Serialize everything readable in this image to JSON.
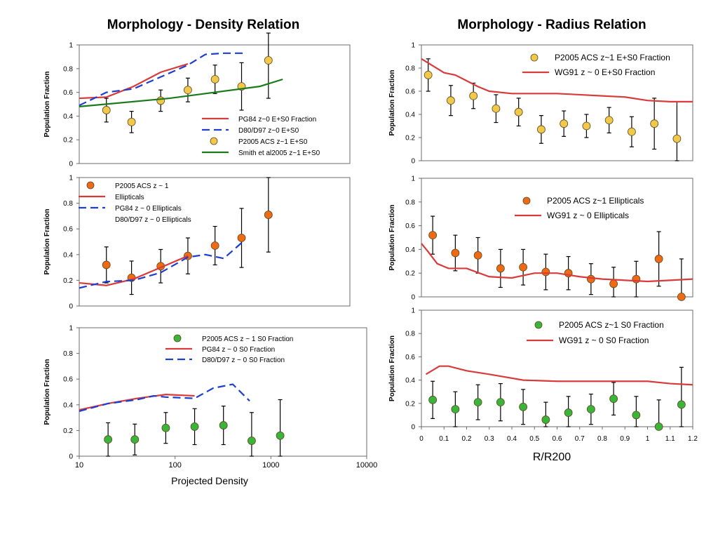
{
  "titles": {
    "left": "Morphology - Density Relation",
    "right": "Morphology - Radius Relation"
  },
  "left_xlabel": "Projected Density",
  "right_xlabel": "R/R200",
  "colors": {
    "red": "#d93a3a",
    "blue": "#1c3fcf",
    "green": "#1a7a1a",
    "yellow_marker": "#f2c84b",
    "orange_marker": "#ee6a14",
    "green_marker": "#3ab53a",
    "frame": "#6b6b6b"
  },
  "chart_data": [
    {
      "type": "scatter",
      "panel": "Density / E+S0",
      "title": "Morphology - Density Relation",
      "ylabel": "Population Fraction",
      "xscale": "log",
      "xlim": [
        10,
        10000
      ],
      "ylim": [
        0,
        1
      ],
      "yticks": [
        "0",
        "0.2",
        "0.4",
        "0.6",
        "0.8",
        "1"
      ],
      "legend_position": "bottom-right",
      "series": [
        {
          "name": "PG84 z~0 E+S0 Fraction",
          "style": "line",
          "color": "red",
          "x": [
            10,
            20,
            40,
            80,
            160
          ],
          "y": [
            0.55,
            0.56,
            0.65,
            0.77,
            0.84
          ]
        },
        {
          "name": "D80/D97 z~0 E+S0",
          "style": "dashed",
          "color": "blue",
          "x": [
            10,
            20,
            40,
            80,
            160,
            250,
            400,
            650
          ],
          "y": [
            0.49,
            0.6,
            0.63,
            0.73,
            0.83,
            0.92,
            0.93,
            0.93
          ]
        },
        {
          "name": "P2005 ACS z~1 E+S0",
          "style": "points",
          "color": "yellow_marker",
          "x": [
            20,
            38,
            80,
            160,
            320,
            630,
            1250
          ],
          "y": [
            0.45,
            0.35,
            0.53,
            0.62,
            0.71,
            0.65,
            0.87
          ],
          "err": [
            0.1,
            0.09,
            0.09,
            0.1,
            0.12,
            0.2,
            0.32
          ]
        },
        {
          "name": "Smith et al2005 z~1 E+S0",
          "style": "line",
          "color": "green",
          "x": [
            10,
            100,
            1000,
            1800
          ],
          "y": [
            0.48,
            0.55,
            0.65,
            0.71
          ]
        }
      ]
    },
    {
      "type": "scatter",
      "panel": "Density / Ellipticals",
      "ylabel": "Population Fraction",
      "xscale": "log",
      "xlim": [
        10,
        10000
      ],
      "ylim": [
        0,
        1
      ],
      "yticks": [
        "0",
        "0.2",
        "0.4",
        "0.6",
        "0.8",
        "1"
      ],
      "legend_position": "top-left",
      "series": [
        {
          "name": "P2005 ACS z ~ 1",
          "style": "points",
          "color": "orange_marker",
          "x": [
            20,
            38,
            80,
            160,
            320,
            630,
            1250
          ],
          "y": [
            0.32,
            0.22,
            0.31,
            0.39,
            0.47,
            0.53,
            0.71
          ],
          "err": [
            0.14,
            0.13,
            0.13,
            0.14,
            0.15,
            0.23,
            0.29
          ]
        },
        {
          "name": "Ellipticals",
          "style": "line",
          "color": "red",
          "x": [
            10,
            20,
            40,
            80,
            160
          ],
          "y": [
            0.18,
            0.16,
            0.21,
            0.3,
            0.39
          ]
        },
        {
          "name": "PG84 z ~ 0 Ellipticals",
          "style": "dashed",
          "color": "blue",
          "x": [
            10,
            20,
            40,
            80,
            160,
            250,
            400,
            650
          ],
          "y": [
            0.14,
            0.19,
            0.2,
            0.26,
            0.38,
            0.4,
            0.37,
            0.5
          ]
        }
      ],
      "legend_extra_text": "D80/D97 z ~ 0 Ellipticals"
    },
    {
      "type": "scatter",
      "panel": "Density / S0",
      "ylabel": "Population Fraction",
      "xscale": "log",
      "xlim": [
        10,
        10000
      ],
      "ylim": [
        0,
        1
      ],
      "yticks": [
        "0",
        "0.2",
        "0.4",
        "0.6",
        "0.8",
        "1"
      ],
      "xticks": [
        "10",
        "100",
        "1000",
        "10000"
      ],
      "xlabel": "Projected Density",
      "legend_position": "top-right",
      "series": [
        {
          "name": "P2005 ACS z ~ 1 S0 Fraction",
          "style": "points",
          "color": "green_marker",
          "x": [
            20,
            38,
            80,
            160,
            320,
            630,
            1250
          ],
          "y": [
            0.13,
            0.13,
            0.22,
            0.23,
            0.24,
            0.12,
            0.16
          ],
          "err": [
            0.13,
            0.12,
            0.12,
            0.14,
            0.15,
            0.22,
            0.28
          ]
        },
        {
          "name": "PG84 z ~ 0 S0 Fraction",
          "style": "line",
          "color": "red",
          "x": [
            10,
            20,
            40,
            80,
            160
          ],
          "y": [
            0.36,
            0.41,
            0.45,
            0.48,
            0.47
          ]
        },
        {
          "name": "D80/D97 z ~ 0 S0 Fraction",
          "style": "dashed",
          "color": "blue",
          "x": [
            10,
            20,
            40,
            60,
            80,
            160,
            250,
            400,
            600
          ],
          "y": [
            0.35,
            0.41,
            0.44,
            0.47,
            0.46,
            0.45,
            0.53,
            0.56,
            0.43
          ]
        }
      ]
    },
    {
      "type": "scatter",
      "panel": "Radius / E+S0",
      "title": "Morphology - Radius Relation",
      "ylabel": "Population Fraction",
      "xlim": [
        0,
        1.2
      ],
      "ylim": [
        0,
        1
      ],
      "yticks": [
        "0",
        "0.2",
        "0.4",
        "0.6",
        "0.8",
        "1"
      ],
      "legend_position": "top-right",
      "series": [
        {
          "name": "P2005 ACS z~1 E+S0 Fraction",
          "style": "points",
          "color": "yellow_marker",
          "x": [
            0.03,
            0.13,
            0.23,
            0.33,
            0.43,
            0.53,
            0.63,
            0.73,
            0.83,
            0.93,
            1.03,
            1.13
          ],
          "y": [
            0.74,
            0.52,
            0.56,
            0.45,
            0.42,
            0.27,
            0.32,
            0.3,
            0.35,
            0.25,
            0.32,
            0.19
          ],
          "err": [
            0.14,
            0.13,
            0.11,
            0.12,
            0.12,
            0.12,
            0.11,
            0.1,
            0.11,
            0.13,
            0.22,
            0.32
          ]
        },
        {
          "name": "WG91 z ~ 0 E+S0 Fraction",
          "style": "line",
          "color": "red",
          "x": [
            0.0,
            0.05,
            0.1,
            0.15,
            0.2,
            0.25,
            0.3,
            0.4,
            0.5,
            0.6,
            0.7,
            0.8,
            0.9,
            1.0,
            1.1,
            1.2
          ],
          "y": [
            0.88,
            0.82,
            0.76,
            0.74,
            0.69,
            0.64,
            0.6,
            0.58,
            0.58,
            0.58,
            0.57,
            0.56,
            0.55,
            0.52,
            0.51,
            0.51
          ]
        }
      ]
    },
    {
      "type": "scatter",
      "panel": "Radius / Ellipticals",
      "ylabel": "Population  Fraction",
      "xlim": [
        0,
        1.2
      ],
      "ylim": [
        0,
        1
      ],
      "yticks": [
        "0",
        "0.2",
        "0.4",
        "0.6",
        "0.8",
        "1"
      ],
      "legend_position": "top-right",
      "series": [
        {
          "name": "P2005 ACS z~1 Ellipticals",
          "style": "points",
          "color": "orange_marker",
          "x": [
            0.05,
            0.15,
            0.25,
            0.35,
            0.45,
            0.55,
            0.65,
            0.75,
            0.85,
            0.95,
            1.05,
            1.15
          ],
          "y": [
            0.52,
            0.37,
            0.35,
            0.24,
            0.25,
            0.21,
            0.2,
            0.15,
            0.11,
            0.15,
            0.32,
            0.0
          ],
          "err": [
            0.16,
            0.15,
            0.15,
            0.16,
            0.15,
            0.15,
            0.14,
            0.13,
            0.14,
            0.15,
            0.23,
            0.32
          ]
        },
        {
          "name": "WG91 z ~ 0 Ellipticals",
          "style": "line",
          "color": "red",
          "x": [
            0.0,
            0.03,
            0.07,
            0.12,
            0.2,
            0.3,
            0.4,
            0.5,
            0.6,
            0.7,
            0.8,
            0.9,
            1.0,
            1.1,
            1.2
          ],
          "y": [
            0.45,
            0.38,
            0.28,
            0.24,
            0.24,
            0.17,
            0.16,
            0.2,
            0.2,
            0.17,
            0.15,
            0.14,
            0.13,
            0.14,
            0.15
          ]
        }
      ]
    },
    {
      "type": "scatter",
      "panel": "Radius / S0",
      "ylabel": "Population Fraction",
      "xlabel": "R/R200",
      "xlim": [
        0,
        1.2
      ],
      "ylim": [
        0,
        1
      ],
      "yticks": [
        "0",
        "0.2",
        "0.4",
        "0.6",
        "0.8",
        "1"
      ],
      "xticks": [
        "0",
        "0.1",
        "0.2",
        "0.3",
        "0.4",
        "0.5",
        "0.6",
        "0.7",
        "0.8",
        "0.9",
        "1",
        "1.1",
        "1.2"
      ],
      "legend_position": "top-right",
      "series": [
        {
          "name": "P2005 ACS z~1 S0 Fraction",
          "style": "points",
          "color": "green_marker",
          "x": [
            0.05,
            0.15,
            0.25,
            0.35,
            0.45,
            0.55,
            0.65,
            0.75,
            0.85,
            0.95,
            1.05,
            1.15
          ],
          "y": [
            0.23,
            0.15,
            0.21,
            0.21,
            0.17,
            0.06,
            0.12,
            0.15,
            0.24,
            0.1,
            0.0,
            0.19
          ],
          "err": [
            0.16,
            0.15,
            0.15,
            0.16,
            0.15,
            0.15,
            0.14,
            0.13,
            0.14,
            0.16,
            0.23,
            0.32
          ]
        },
        {
          "name": "WG91 z ~ 0 S0 Fraction",
          "style": "line",
          "color": "red",
          "x": [
            0.02,
            0.08,
            0.12,
            0.2,
            0.3,
            0.45,
            0.6,
            0.8,
            1.0,
            1.1,
            1.2
          ],
          "y": [
            0.45,
            0.52,
            0.52,
            0.48,
            0.45,
            0.4,
            0.39,
            0.39,
            0.39,
            0.37,
            0.36
          ]
        }
      ]
    }
  ]
}
